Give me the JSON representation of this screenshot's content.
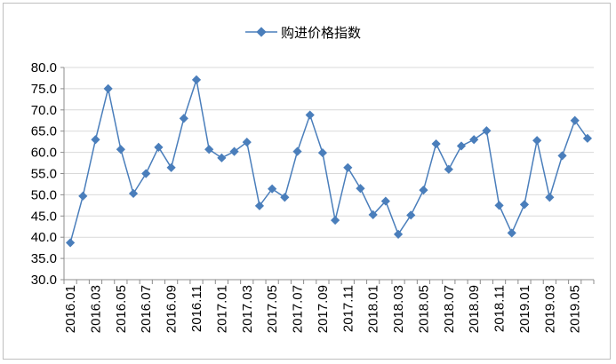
{
  "chart_data": {
    "type": "line",
    "title": "",
    "xlabel": "",
    "ylabel": "",
    "ylim": [
      30.0,
      80.0
    ],
    "y_ticks": [
      "30.0",
      "35.0",
      "40.0",
      "45.0",
      "50.0",
      "55.0",
      "60.0",
      "65.0",
      "70.0",
      "75.0",
      "80.0"
    ],
    "grid": "horizontal",
    "legend_position": "top",
    "series_color": "#4a7ebb",
    "categories": [
      "2016.01",
      "2016.02",
      "2016.03",
      "2016.04",
      "2016.05",
      "2016.06",
      "2016.07",
      "2016.08",
      "2016.09",
      "2016.10",
      "2016.11",
      "2016.12",
      "2017.01",
      "2017.02",
      "2017.03",
      "2017.04",
      "2017.05",
      "2017.06",
      "2017.07",
      "2017.08",
      "2017.09",
      "2017.10",
      "2017.11",
      "2017.12",
      "2018.01",
      "2018.02",
      "2018.03",
      "2018.04",
      "2018.05",
      "2018.06",
      "2018.07",
      "2018.08",
      "2018.09",
      "2018.10",
      "2018.11",
      "2018.12",
      "2019.01",
      "2019.02",
      "2019.03",
      "2019.04",
      "2019.05",
      "2019.06"
    ],
    "x_tick_labels": [
      "2016.01",
      "2016.03",
      "2016.05",
      "2016.07",
      "2016.09",
      "2016.11",
      "2017.01",
      "2017.03",
      "2017.05",
      "2017.07",
      "2017.09",
      "2017.11",
      "2018.01",
      "2018.03",
      "2018.05",
      "2018.07",
      "2018.09",
      "2018.11",
      "2019.01",
      "2019.03",
      "2019.05"
    ],
    "series": [
      {
        "name": "购进价格指数",
        "values": [
          38.7,
          49.7,
          63.0,
          75.0,
          60.7,
          50.3,
          55.0,
          61.2,
          56.4,
          68.0,
          77.1,
          60.7,
          58.7,
          60.2,
          62.4,
          47.4,
          51.4,
          49.4,
          60.2,
          68.8,
          59.9,
          44.0,
          56.4,
          51.5,
          45.3,
          48.5,
          40.7,
          45.2,
          51.1,
          62.0,
          56.0,
          61.5,
          63.0,
          65.1,
          47.5,
          41.0,
          47.7,
          62.8,
          49.4,
          59.2,
          67.5,
          63.3
        ]
      }
    ]
  }
}
